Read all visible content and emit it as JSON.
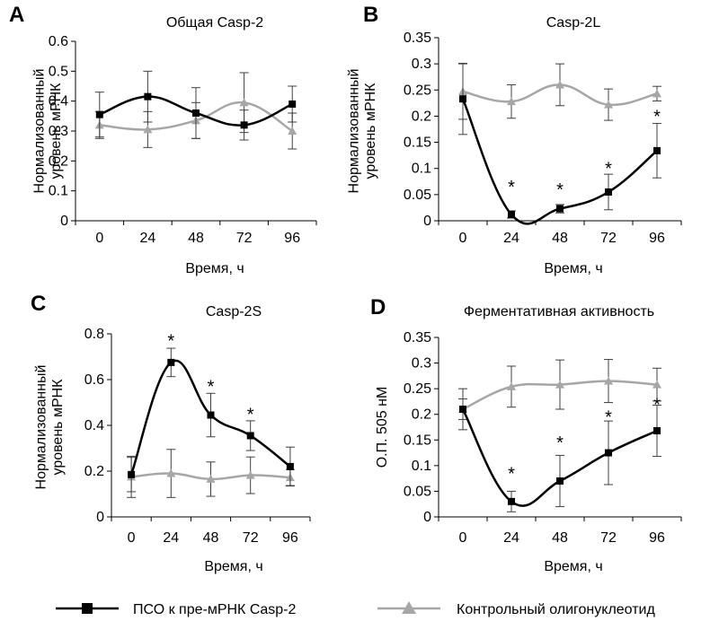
{
  "colors": {
    "treated": "#000000",
    "control": "#a6a6a6",
    "axis": "#000000",
    "errorbar": "#3f3f3f",
    "background": "#ffffff"
  },
  "legend": {
    "treated_label": "ПСО к пре-мРНК Casp-2",
    "treated_marker": "square-marker-icon",
    "control_label": "Контрольный олигонуклеотид",
    "control_marker": "triangle-marker-icon"
  },
  "chart_data": [
    {
      "panel": "A",
      "type": "line",
      "title": "Общая Casp-2",
      "xlabel": "Время, ч",
      "ylabel": [
        "Нормализованный",
        "уровень мРНК"
      ],
      "x": [
        0,
        24,
        48,
        72,
        96
      ],
      "x_tick_labels": [
        "0",
        "24",
        "48",
        "72",
        "96"
      ],
      "ylim": [
        0,
        0.6
      ],
      "y_ticks": [
        0,
        0.1,
        0.2,
        0.3,
        0.4,
        0.5,
        0.6
      ],
      "y_tick_labels": [
        "0",
        "0.1",
        "0.2",
        "0.3",
        "0.4",
        "0.5",
        "0.6"
      ],
      "series": [
        {
          "values": [
            0.355,
            0.415,
            0.36,
            0.32,
            0.39
          ],
          "errors": [
            0.075,
            0.085,
            0.085,
            0.05,
            0.06
          ],
          "marker": "square"
        },
        {
          "values": [
            0.32,
            0.305,
            0.335,
            0.395,
            0.3
          ],
          "errors": [
            0.045,
            0.06,
            0.06,
            0.1,
            0.06
          ],
          "marker": "triangle"
        }
      ],
      "significance": []
    },
    {
      "panel": "B",
      "type": "line",
      "title": "Casp-2L",
      "xlabel": "Время, ч",
      "ylabel": [
        "Нормализованный",
        "уровень мРНК"
      ],
      "x": [
        0,
        24,
        48,
        72,
        96
      ],
      "x_tick_labels": [
        "0",
        "24",
        "48",
        "72",
        "96"
      ],
      "ylim": [
        0,
        0.35
      ],
      "y_ticks": [
        0,
        0.05,
        0.1,
        0.15,
        0.2,
        0.25,
        0.3,
        0.35
      ],
      "y_tick_labels": [
        "0",
        "0.05",
        "0.1",
        "0.15",
        "0.2",
        "0.25",
        "0.3",
        "0.35"
      ],
      "series": [
        {
          "values": [
            0.233,
            0.012,
            0.023,
            0.055,
            0.134
          ],
          "errors": [
            0.068,
            0.007,
            0.008,
            0.034,
            0.052
          ],
          "marker": "square"
        },
        {
          "values": [
            0.247,
            0.228,
            0.26,
            0.222,
            0.243
          ],
          "errors": [
            0.053,
            0.032,
            0.04,
            0.03,
            0.014
          ],
          "marker": "triangle"
        }
      ],
      "significance": [
        {
          "x": 24,
          "y": 0.065,
          "label": "*"
        },
        {
          "x": 48,
          "y": 0.06,
          "label": "*"
        },
        {
          "x": 72,
          "y": 0.1,
          "label": "*"
        },
        {
          "x": 96,
          "y": 0.2,
          "label": "*"
        }
      ]
    },
    {
      "panel": "C",
      "type": "line",
      "title": "Casp-2S",
      "xlabel": "Время, ч",
      "ylabel": [
        "Нормализованный",
        "уровень мРНК"
      ],
      "x": [
        0,
        24,
        48,
        72,
        96
      ],
      "x_tick_labels": [
        "0",
        "24",
        "48",
        "72",
        "96"
      ],
      "ylim": [
        0,
        0.8
      ],
      "y_ticks": [
        0,
        0.2,
        0.4,
        0.6,
        0.8
      ],
      "y_tick_labels": [
        "0",
        "0.2",
        "0.4",
        "0.6",
        "0.8"
      ],
      "series": [
        {
          "values": [
            0.185,
            0.675,
            0.445,
            0.355,
            0.22
          ],
          "errors": [
            0.075,
            0.062,
            0.095,
            0.065,
            0.085
          ],
          "marker": "square"
        },
        {
          "values": [
            0.175,
            0.19,
            0.165,
            0.182,
            0.172
          ],
          "errors": [
            0.09,
            0.105,
            0.075,
            0.08,
            0.035
          ],
          "marker": "triangle"
        }
      ],
      "significance": [
        {
          "x": 24,
          "y": 0.77,
          "label": "*"
        },
        {
          "x": 48,
          "y": 0.57,
          "label": "*"
        },
        {
          "x": 72,
          "y": 0.45,
          "label": "*"
        }
      ]
    },
    {
      "panel": "D",
      "type": "line",
      "title": "Ферментативная активность",
      "xlabel": "Время, ч",
      "ylabel": [
        "О.П. 505 нМ"
      ],
      "x": [
        0,
        24,
        48,
        72,
        96
      ],
      "x_tick_labels": [
        "0",
        "24",
        "48",
        "72",
        "96"
      ],
      "ylim": [
        0,
        0.35
      ],
      "y_ticks": [
        0,
        0.05,
        0.1,
        0.15,
        0.2,
        0.25,
        0.3,
        0.35
      ],
      "y_tick_labels": [
        "0",
        "0.05",
        "0.1",
        "0.15",
        "0.2",
        "0.25",
        "0.3",
        "0.35"
      ],
      "series": [
        {
          "values": [
            0.21,
            0.03,
            0.07,
            0.125,
            0.168
          ],
          "errors": [
            0.04,
            0.02,
            0.05,
            0.062,
            0.05
          ],
          "marker": "square"
        },
        {
          "values": [
            0.21,
            0.254,
            0.258,
            0.265,
            0.258
          ],
          "errors": [
            0.02,
            0.04,
            0.048,
            0.042,
            0.032
          ],
          "marker": "triangle"
        }
      ],
      "significance": [
        {
          "x": 24,
          "y": 0.085,
          "label": "*"
        },
        {
          "x": 48,
          "y": 0.145,
          "label": "*"
        },
        {
          "x": 72,
          "y": 0.195,
          "label": "*"
        },
        {
          "x": 96,
          "y": 0.22,
          "label": "*"
        }
      ]
    }
  ]
}
